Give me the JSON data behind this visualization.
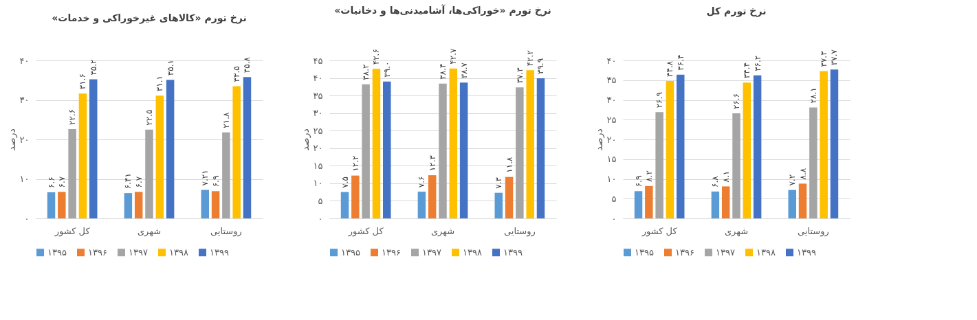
{
  "chart_data": [
    {
      "type": "bar",
      "title": "نرخ تورم «کالاهای غیرخوراکی و خدمات»",
      "ylabel": "درصد",
      "categories": [
        "کل کشور",
        "شهری",
        "روستایی"
      ],
      "ylim": [
        0,
        40
      ],
      "yticks": [
        {
          "value": 0,
          "label": "۰"
        },
        {
          "value": 10,
          "label": "۱۰"
        },
        {
          "value": 20,
          "label": "۲۰"
        },
        {
          "value": 30,
          "label": "۳۰"
        },
        {
          "value": 40,
          "label": "۴۰"
        }
      ],
      "grid": "y",
      "legend": "bottom",
      "series": [
        {
          "name": "۱۳۹۵",
          "color": "#5b9bd5",
          "values": [
            6.6,
            6.41,
            7.21
          ],
          "value_labels": [
            "۶.۶",
            "۶.۴۱",
            "۷.۲۱"
          ]
        },
        {
          "name": "۱۳۹۶",
          "color": "#ed7d31",
          "values": [
            6.7,
            6.7,
            6.9
          ],
          "value_labels": [
            "۶.۷",
            "۶.۷",
            "۶.۹"
          ]
        },
        {
          "name": "۱۳۹۷",
          "color": "#a5a5a5",
          "values": [
            22.6,
            22.5,
            21.8
          ],
          "value_labels": [
            "۲۲.۶",
            "۲۲.۵",
            "۲۱.۸"
          ]
        },
        {
          "name": "۱۳۹۸",
          "color": "#ffc000",
          "values": [
            31.6,
            31.1,
            33.5
          ],
          "value_labels": [
            "۳۱.۶",
            "۳۱.۱",
            "۳۳.۵"
          ]
        },
        {
          "name": "۱۳۹۹",
          "color": "#4472c4",
          "values": [
            35.2,
            35.1,
            35.8
          ],
          "value_labels": [
            "۳۵.۲",
            "۳۵.۱",
            "۳۵.۸"
          ]
        }
      ]
    },
    {
      "type": "bar",
      "title": "نرخ تورم «خوراکی‌ها، آشامیدنی‌ها و دخانیات»",
      "ylabel": "درصد",
      "categories": [
        "کل کشور",
        "شهری",
        "روستایی"
      ],
      "ylim": [
        0,
        45
      ],
      "yticks": [
        {
          "value": 0,
          "label": "۰"
        },
        {
          "value": 5,
          "label": "۵"
        },
        {
          "value": 10,
          "label": "۱۰"
        },
        {
          "value": 15,
          "label": "۱۵"
        },
        {
          "value": 20,
          "label": "۲۰"
        },
        {
          "value": 25,
          "label": "۲۵"
        },
        {
          "value": 30,
          "label": "۳۰"
        },
        {
          "value": 35,
          "label": "۳۵"
        },
        {
          "value": 40,
          "label": "۴۰"
        },
        {
          "value": 45,
          "label": "۴۵"
        }
      ],
      "grid": "y",
      "legend": "bottom",
      "series": [
        {
          "name": "۱۳۹۵",
          "color": "#5b9bd5",
          "values": [
            7.5,
            7.6,
            7.3
          ],
          "value_labels": [
            "۷.۵",
            "۷.۶",
            "۷.۳"
          ]
        },
        {
          "name": "۱۳۹۶",
          "color": "#ed7d31",
          "values": [
            12.2,
            12.3,
            11.8
          ],
          "value_labels": [
            "۱۲.۲",
            "۱۲.۳",
            "۱۱.۸"
          ]
        },
        {
          "name": "۱۳۹۷",
          "color": "#a5a5a5",
          "values": [
            38.2,
            38.4,
            37.3
          ],
          "value_labels": [
            "۳۸.۲",
            "۳۸.۴",
            "۳۷.۳"
          ]
        },
        {
          "name": "۱۳۹۸",
          "color": "#ffc000",
          "values": [
            42.6,
            42.7,
            42.2
          ],
          "value_labels": [
            "۴۲.۶",
            "۴۲.۷",
            "۴۲.۲"
          ]
        },
        {
          "name": "۱۳۹۹",
          "color": "#4472c4",
          "values": [
            39.0,
            38.7,
            39.9
          ],
          "value_labels": [
            "۳۹.۰",
            "۳۸.۷",
            "۳۹.۹"
          ]
        }
      ]
    },
    {
      "type": "bar",
      "title": "نرخ تورم کل",
      "ylabel": "درصد",
      "categories": [
        "کل کشور",
        "شهری",
        "روستایی"
      ],
      "ylim": [
        0,
        40
      ],
      "yticks": [
        {
          "value": 0,
          "label": "۰"
        },
        {
          "value": 5,
          "label": "۵"
        },
        {
          "value": 10,
          "label": "۱۰"
        },
        {
          "value": 15,
          "label": "۱۵"
        },
        {
          "value": 20,
          "label": "۲۰"
        },
        {
          "value": 25,
          "label": "۲۵"
        },
        {
          "value": 30,
          "label": "۳۰"
        },
        {
          "value": 35,
          "label": "۳۵"
        },
        {
          "value": 40,
          "label": "۴۰"
        }
      ],
      "grid": "y",
      "legend": "bottom",
      "series": [
        {
          "name": "۱۳۹۵",
          "color": "#5b9bd5",
          "values": [
            6.9,
            6.8,
            7.2
          ],
          "value_labels": [
            "۶.۹",
            "۶.۸",
            "۷.۲"
          ]
        },
        {
          "name": "۱۳۹۶",
          "color": "#ed7d31",
          "values": [
            8.2,
            8.1,
            8.8
          ],
          "value_labels": [
            "۸.۲",
            "۸.۱",
            "۸.۸"
          ]
        },
        {
          "name": "۱۳۹۷",
          "color": "#a5a5a5",
          "values": [
            26.9,
            26.6,
            28.1
          ],
          "value_labels": [
            "۲۶.۹",
            "۲۶.۶",
            "۲۸.۱"
          ]
        },
        {
          "name": "۱۳۹۸",
          "color": "#ffc000",
          "values": [
            34.8,
            34.4,
            37.3
          ],
          "value_labels": [
            "۳۴.۸",
            "۳۴.۴",
            "۳۷.۳"
          ]
        },
        {
          "name": "۱۳۹۹",
          "color": "#4472c4",
          "values": [
            36.4,
            36.2,
            37.7
          ],
          "value_labels": [
            "۳۶.۴",
            "۳۶.۲",
            "۳۷.۷"
          ]
        }
      ]
    }
  ]
}
